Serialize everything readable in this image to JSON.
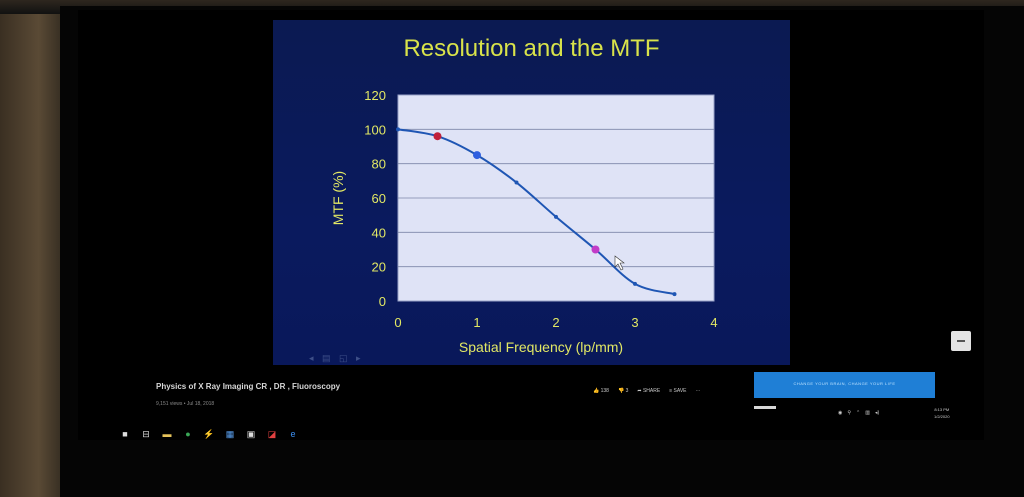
{
  "slide": {
    "title": "Resolution and the MTF"
  },
  "chart_data": {
    "type": "line",
    "title": "Resolution and the MTF",
    "xlabel": "Spatial Frequency (lp/mm)",
    "ylabel": "MTF (%)",
    "xlim": [
      0,
      4
    ],
    "ylim": [
      0,
      120
    ],
    "xticks": [
      "0",
      "1",
      "2",
      "3",
      "4"
    ],
    "yticks": [
      "0",
      "20",
      "40",
      "60",
      "80",
      "100",
      "120"
    ],
    "grid": true,
    "series": [
      {
        "x": [
          0,
          0.5,
          1.0,
          1.5,
          2.0,
          2.5,
          3.0,
          3.5
        ],
        "values": [
          100,
          96,
          85,
          69,
          49,
          30,
          10,
          4
        ]
      }
    ],
    "highlighted_points": [
      {
        "x": 0.5,
        "y": 96,
        "color": "#c0203a"
      },
      {
        "x": 1.0,
        "y": 85,
        "color": "#2f5fe0"
      },
      {
        "x": 2.5,
        "y": 30,
        "color": "#c23cc8"
      }
    ],
    "colors": {
      "line": "#1f56b4",
      "plot_bg": "#dfe3f6",
      "axis_text": "#e2e864"
    }
  },
  "video": {
    "title": "Physics of X Ray Imaging CR , DR , Fluoroscopy",
    "meta": "9,151 views • Jul 18, 2018",
    "likes": "138",
    "dislikes": "3",
    "share_label": "SHARE",
    "save_label": "SAVE",
    "more_label": "···"
  },
  "banner": {
    "text": "CHANGE YOUR BRAIN, CHANGE YOUR LIFE"
  },
  "system": {
    "time": "8:13 PM",
    "date": "1/2/2020"
  }
}
